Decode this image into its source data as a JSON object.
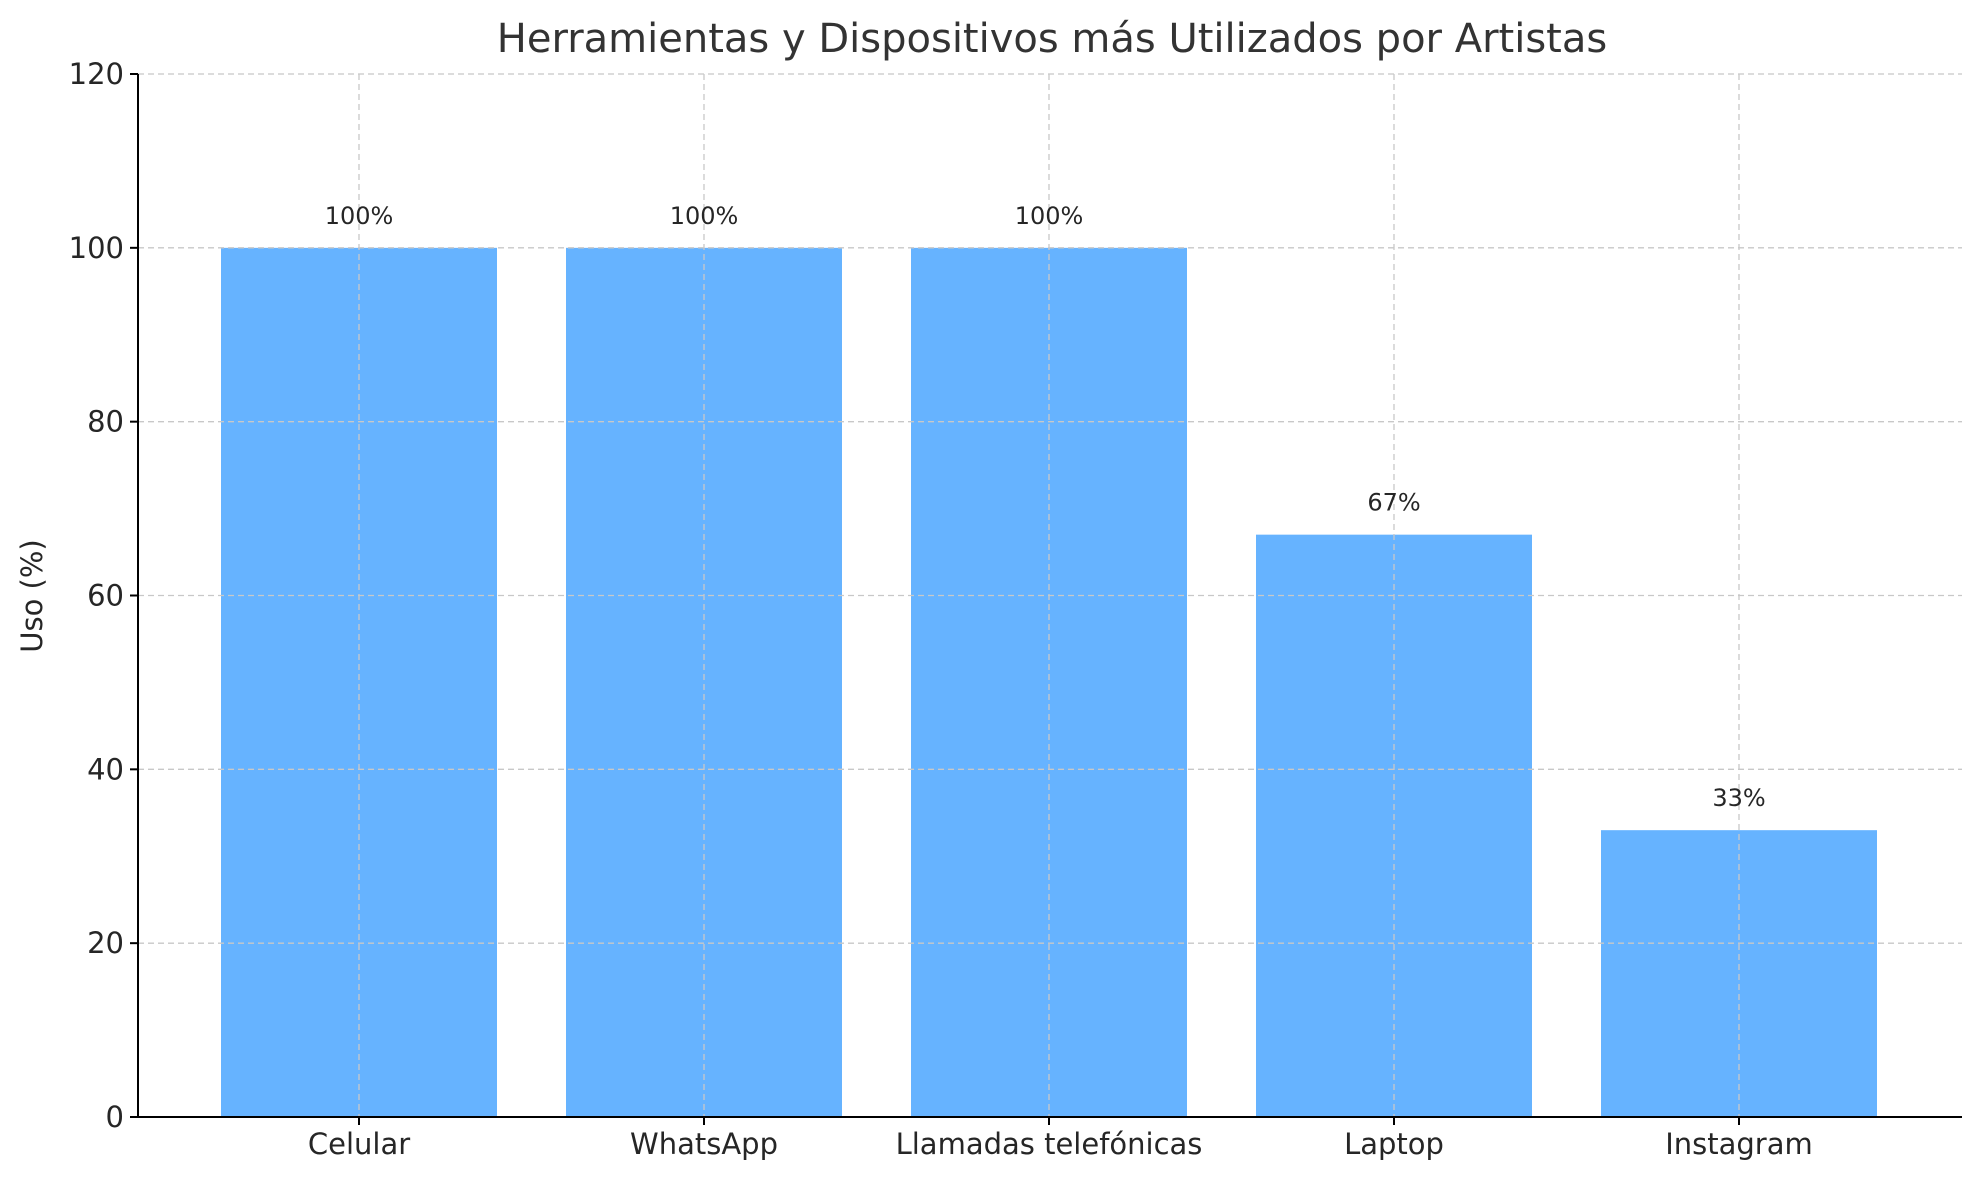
{
  "chart_data": {
    "type": "bar",
    "title": "Herramientas y Dispositivos más Utilizados por Artistas",
    "xlabel": "",
    "ylabel": "Uso (%)",
    "categories": [
      "Celular",
      "WhatsApp",
      "Llamadas telefónicas",
      "Laptop",
      "Instagram"
    ],
    "values": [
      100,
      100,
      100,
      67,
      33
    ],
    "value_labels": [
      "100%",
      "100%",
      "100%",
      "67%",
      "33%"
    ],
    "ylim": [
      0,
      120
    ],
    "yticks": [
      0,
      20,
      40,
      60,
      80,
      100,
      120
    ],
    "grid": true,
    "colors": {
      "bar": "#66b3ff",
      "grid": "#c8c8c8",
      "axis": "#000000",
      "text": "#262626",
      "title": "#333333"
    }
  }
}
